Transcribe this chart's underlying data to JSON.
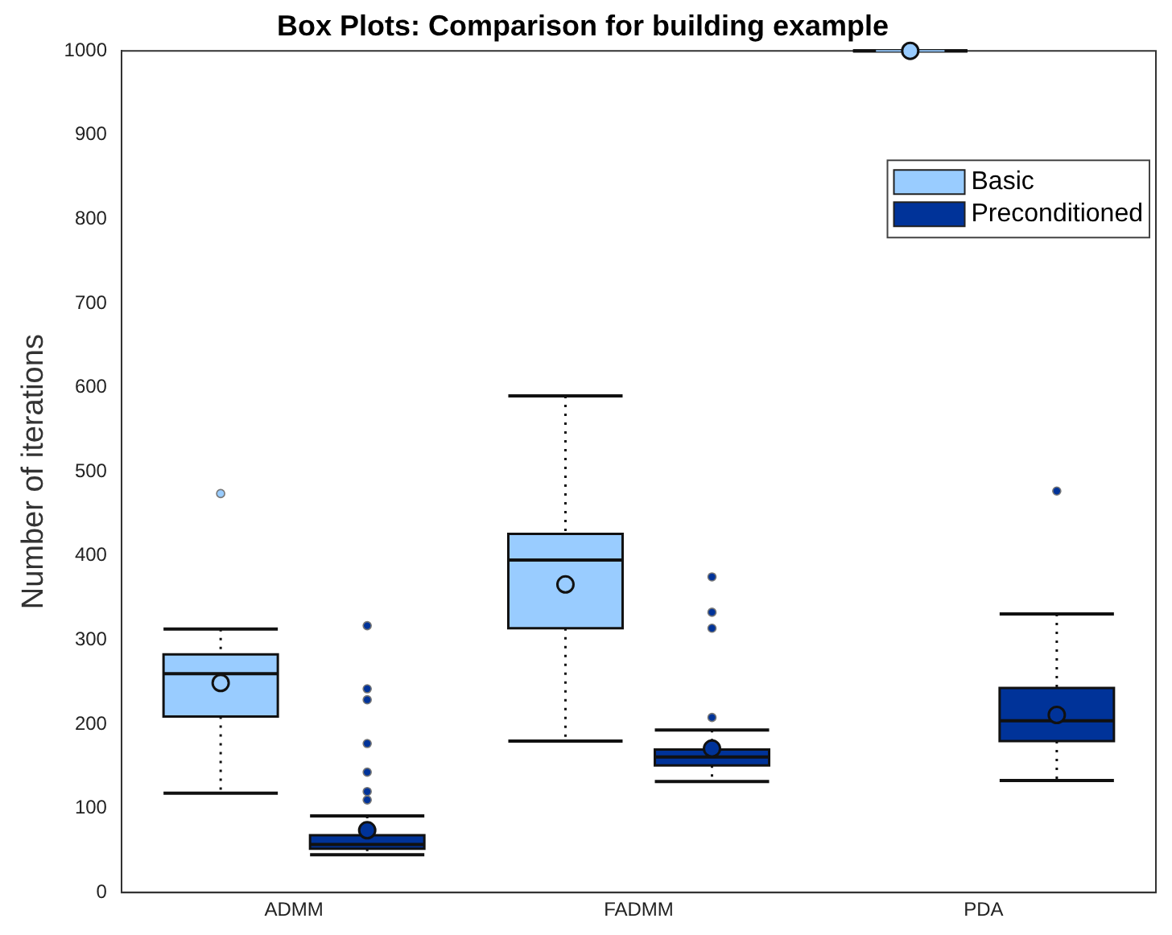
{
  "chart_data": {
    "type": "box",
    "title": "Box Plots: Comparison for building example",
    "ylabel": "Number of iterations",
    "categories": [
      "ADMM",
      "FADMM",
      "PDA"
    ],
    "ylim": [
      0,
      1000
    ],
    "yticks": [
      0,
      100,
      200,
      300,
      400,
      500,
      600,
      700,
      800,
      900,
      1000
    ],
    "grid": false,
    "legend": "top right",
    "series": [
      {
        "name": "Basic",
        "color": "#99ccff",
        "boxes": [
          {
            "low": 118,
            "q1": 209,
            "median": 260,
            "q3": 283,
            "high": 313,
            "mean": 249,
            "outliers": [
              474
            ]
          },
          {
            "low": 180,
            "q1": 314,
            "median": 395,
            "q3": 426,
            "high": 590,
            "mean": 366
          },
          {
            "low": 1000,
            "q1": 1000,
            "median": 1000,
            "q3": 1000,
            "high": 1000,
            "mean": 1000
          }
        ]
      },
      {
        "name": "Preconditioned",
        "color": "#003399",
        "boxes": [
          {
            "low": 45,
            "q1": 52,
            "median": 57,
            "q3": 68,
            "high": 91,
            "mean": 74,
            "outliers": [
              317,
              242,
              229,
              177,
              143,
              120,
              110
            ]
          },
          {
            "low": 132,
            "q1": 151,
            "median": 161,
            "q3": 170,
            "high": 193,
            "mean": 171,
            "outliers": [
              375,
              333,
              314,
              208
            ]
          },
          {
            "low": 133,
            "q1": 180,
            "median": 204,
            "q3": 243,
            "high": 331,
            "mean": 211,
            "outliers": [
              477
            ]
          }
        ]
      }
    ]
  }
}
